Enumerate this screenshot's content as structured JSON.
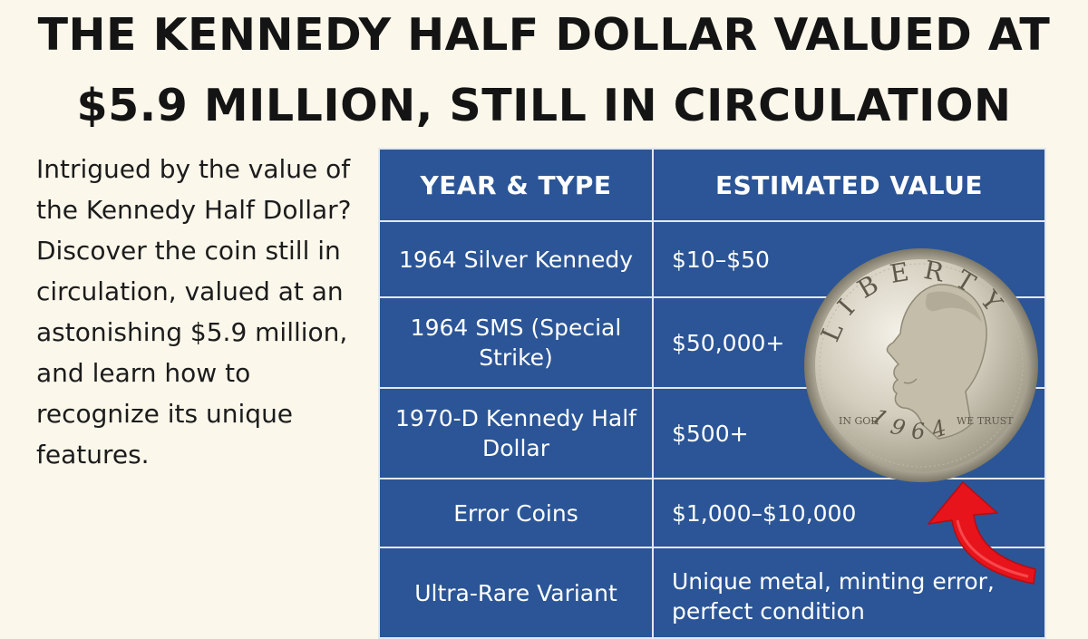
{
  "headline": {
    "line1": "THE KENNEDY HALF DOLLAR VALUED AT",
    "line2": "$5.9 MILLION, STILL IN CIRCULATION"
  },
  "intro": "Intrigued by the value of the Kennedy Half Dollar? Discover the coin still in circulation, valued at an astonishing $5.9 million, and learn how to recognize its unique features.",
  "table": {
    "headers": [
      "YEAR & TYPE",
      "ESTIMATED VALUE"
    ],
    "rows": [
      {
        "type": "1964 Silver Kennedy",
        "value": "$10–$50"
      },
      {
        "type": "1964 SMS (Special Strike)",
        "value": "$50,000+"
      },
      {
        "type": "1970-D Kennedy Half Dollar",
        "value": "$500+"
      },
      {
        "type": "Error Coins",
        "value": "$1,000–$10,000"
      },
      {
        "type": "Ultra-Rare Variant",
        "value": "Unique metal, minting error, perfect condition"
      }
    ]
  },
  "coin": {
    "legend_top": "LIBERTY",
    "motto_left": "IN GOD",
    "motto_right": "WE TRUST",
    "year": "1964",
    "metal_color": "#cfc9b9"
  },
  "colors": {
    "background": "#fbf7eb",
    "table_fill": "#2b5596",
    "arrow": "#e8141b"
  }
}
